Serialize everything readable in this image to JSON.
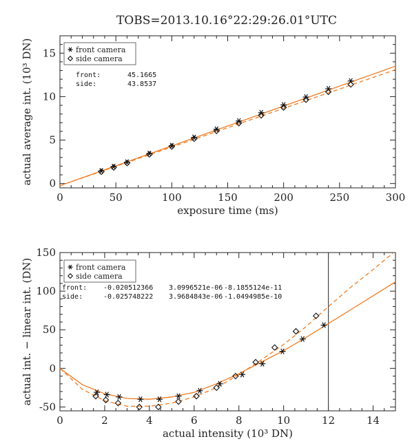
{
  "page_title": "TOBS=2013.10.16°22:29:26.01°UTC",
  "colors": {
    "fit": "#f07c21",
    "axes": "#222222",
    "markers": "#111111"
  },
  "chart_data": [
    {
      "type": "scatter",
      "xlabel": "exposure time (ms)",
      "ylabel": "actual average int. (10³ DN)",
      "xlim": [
        0,
        300
      ],
      "ylim": [
        -0.5,
        17
      ],
      "xticks": [
        0,
        50,
        100,
        150,
        200,
        250,
        300
      ],
      "yticks": [
        0,
        5,
        10,
        15
      ],
      "legend": {
        "placement": "top-left",
        "entries": [
          {
            "label": "front camera",
            "marker": "asterisk"
          },
          {
            "label": "side camera",
            "marker": "diamond"
          }
        ]
      },
      "annotations": [
        {
          "label": "front:",
          "value": "45.1665"
        },
        {
          "label": "side:",
          "value": "43.8537"
        }
      ],
      "series": [
        {
          "name": "front camera",
          "marker": "asterisk",
          "x": [
            37,
            48,
            60,
            80,
            100,
            120,
            140,
            160,
            180,
            200,
            220,
            240,
            260
          ],
          "y": [
            1.45,
            1.95,
            2.45,
            3.45,
            4.35,
            5.3,
            6.25,
            7.2,
            8.15,
            9.05,
            9.95,
            10.9,
            11.8
          ]
        },
        {
          "name": "side camera",
          "marker": "diamond",
          "x": [
            37,
            48,
            60,
            80,
            100,
            120,
            140,
            160,
            180,
            200,
            220,
            240,
            260
          ],
          "y": [
            1.35,
            1.85,
            2.35,
            3.35,
            4.25,
            5.15,
            6.05,
            6.95,
            7.85,
            8.75,
            9.65,
            10.55,
            11.4
          ]
        }
      ],
      "fits": [
        {
          "for": "front camera",
          "style": "solid",
          "x": [
            0,
            300
          ],
          "y": [
            -0.25,
            13.5
          ]
        },
        {
          "for": "side camera",
          "style": "dashed",
          "x": [
            0,
            300
          ],
          "y": [
            -0.25,
            13.1
          ]
        }
      ]
    },
    {
      "type": "scatter",
      "xlabel": "actual intensity (10³ DN)",
      "ylabel": "actual int. − linear int. (DN)",
      "xlim": [
        0,
        15
      ],
      "ylim": [
        -55,
        150
      ],
      "xticks": [
        0,
        2,
        4,
        6,
        8,
        10,
        12,
        14
      ],
      "yticks": [
        -50,
        0,
        50,
        100,
        150
      ],
      "vline_x": 12,
      "legend": {
        "placement": "top-left",
        "entries": [
          {
            "label": "front camera",
            "marker": "asterisk"
          },
          {
            "label": "side camera",
            "marker": "diamond"
          }
        ]
      },
      "annotations": [
        {
          "label": "front:",
          "c0": "-0.020512366",
          "c1": "3.0996521e-06",
          "c2": "-8.1855124e-11"
        },
        {
          "label": "side:",
          "c0": "-0.025748222",
          "c1": "3.9684843e-06",
          "c2": "-1.0494985e-10"
        }
      ],
      "series": [
        {
          "name": "front camera",
          "marker": "asterisk",
          "x": [
            1.65,
            2.1,
            2.65,
            3.6,
            4.45,
            5.3,
            6.25,
            7.15,
            8.15,
            9.05,
            9.95,
            10.85,
            11.8
          ],
          "y": [
            -31,
            -34,
            -37,
            -40,
            -40,
            -36,
            -29,
            -20,
            -8,
            6,
            22,
            38,
            56
          ]
        },
        {
          "name": "side camera",
          "marker": "diamond",
          "x": [
            1.6,
            2.05,
            2.6,
            3.55,
            4.4,
            5.3,
            6.1,
            7.0,
            7.85,
            8.75,
            9.6,
            10.55,
            11.45
          ],
          "y": [
            -36,
            -41,
            -45,
            -50,
            -50,
            -43,
            -36,
            -25,
            -10,
            8,
            27,
            48,
            68
          ]
        }
      ],
      "fits": [
        {
          "for": "front camera",
          "style": "solid",
          "x": [
            0,
            1,
            2,
            3,
            4,
            5,
            6,
            7,
            8,
            9,
            10,
            11,
            12,
            13,
            14,
            15
          ],
          "y": [
            0,
            -21,
            -33,
            -39,
            -40,
            -37,
            -31,
            -20,
            -7,
            8,
            23,
            40,
            58,
            76,
            94,
            112
          ]
        },
        {
          "for": "side camera",
          "style": "dashed",
          "x": [
            0,
            1,
            2,
            3,
            4,
            5,
            6,
            7,
            8,
            9,
            10,
            11,
            12,
            13,
            14,
            15
          ],
          "y": [
            0,
            -27,
            -42,
            -49,
            -49,
            -45,
            -37,
            -25,
            -8,
            11,
            31,
            54,
            80,
            105,
            128,
            152
          ]
        }
      ]
    }
  ]
}
